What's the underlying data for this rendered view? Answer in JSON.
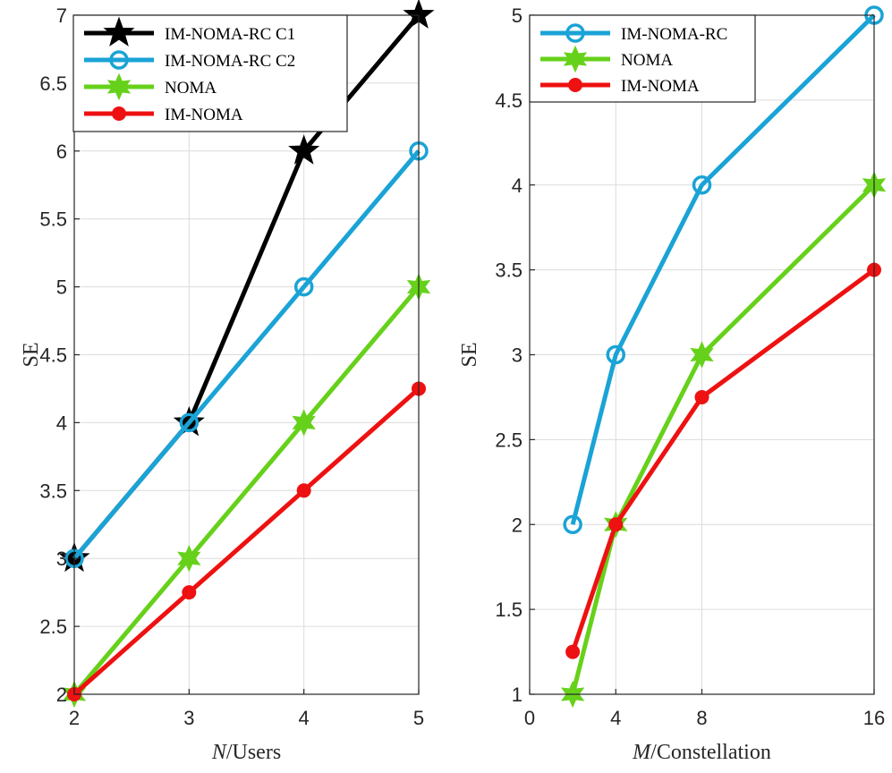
{
  "chart_data": [
    {
      "type": "line",
      "id": "left",
      "xlabel_italic": "N",
      "xlabel_rest": "/Users",
      "ylabel": "SE",
      "xlim": [
        2,
        5
      ],
      "ylim": [
        2,
        7
      ],
      "xticks": [
        2,
        3,
        4,
        5
      ],
      "xtick_labels": [
        "2",
        "3",
        "4",
        "5"
      ],
      "yticks": [
        2,
        2.5,
        3,
        3.5,
        4,
        4.5,
        5,
        5.5,
        6,
        6.5,
        7
      ],
      "ytick_labels": [
        "2",
        "2.5",
        "3",
        "3.5",
        "4",
        "4.5",
        "5",
        "5.5",
        "6",
        "6.5",
        "7"
      ],
      "legend_position": "top-left",
      "series": [
        {
          "name": "IM-NOMA-RC C1",
          "color": "#000000",
          "marker": "star5",
          "x": [
            2,
            3,
            4,
            5
          ],
          "y": [
            3,
            4,
            6,
            7
          ]
        },
        {
          "name": "IM-NOMA-RC C2",
          "color": "#1aa3d6",
          "marker": "circle",
          "x": [
            2,
            3,
            4,
            5
          ],
          "y": [
            3,
            4,
            5,
            6
          ]
        },
        {
          "name": "NOMA",
          "color": "#66d11a",
          "marker": "star6",
          "x": [
            2,
            3,
            4,
            5
          ],
          "y": [
            2,
            3,
            4,
            5
          ]
        },
        {
          "name": "IM-NOMA",
          "color": "#ee1111",
          "marker": "dot",
          "x": [
            2,
            3,
            4,
            5
          ],
          "y": [
            2,
            2.75,
            3.5,
            4.25
          ]
        }
      ]
    },
    {
      "type": "line",
      "id": "right",
      "xlabel_italic": "M",
      "xlabel_rest": "/Constellation",
      "ylabel": "SE",
      "xlim": [
        0,
        16
      ],
      "ylim": [
        1,
        5
      ],
      "xticks": [
        0,
        4,
        8,
        16
      ],
      "xtick_labels": [
        "0",
        "4",
        "8",
        "16"
      ],
      "yticks": [
        1,
        1.5,
        2,
        2.5,
        3,
        3.5,
        4,
        4.5,
        5
      ],
      "ytick_labels": [
        "1",
        "1.5",
        "2",
        "2.5",
        "3",
        "3.5",
        "4",
        "4.5",
        "5"
      ],
      "legend_position": "top-left",
      "series": [
        {
          "name": "IM-NOMA-RC",
          "color": "#1aa3d6",
          "marker": "circle",
          "x": [
            2,
            4,
            8,
            16
          ],
          "y": [
            2,
            3,
            4,
            5
          ]
        },
        {
          "name": "NOMA",
          "color": "#66d11a",
          "marker": "star6",
          "x": [
            2,
            4,
            8,
            16
          ],
          "y": [
            1,
            2,
            3,
            4
          ]
        },
        {
          "name": "IM-NOMA",
          "color": "#ee1111",
          "marker": "dot",
          "x": [
            2,
            4,
            8,
            16
          ],
          "y": [
            1.25,
            2,
            2.75,
            3.5
          ]
        }
      ]
    }
  ]
}
